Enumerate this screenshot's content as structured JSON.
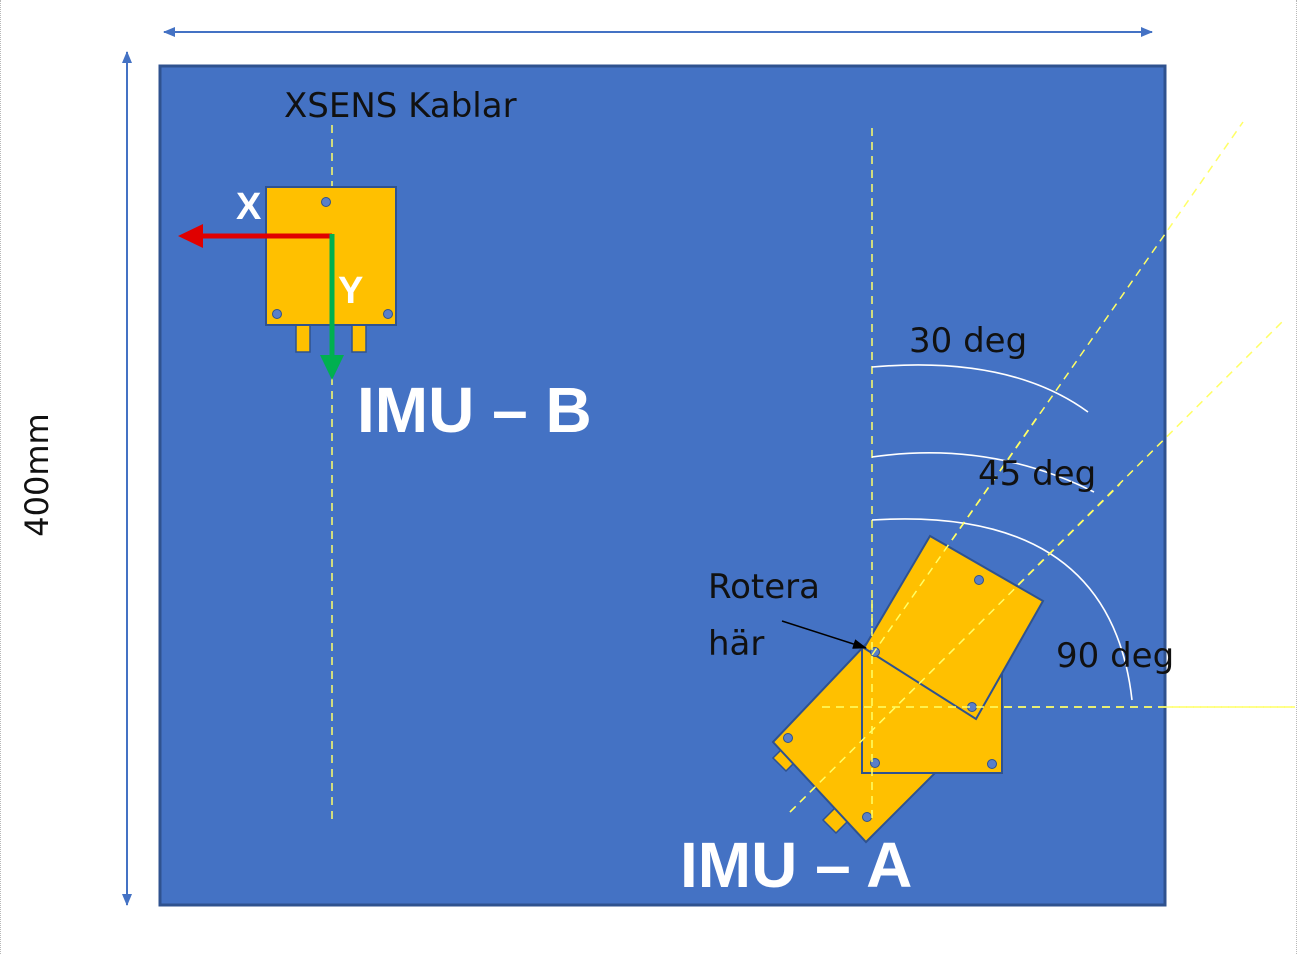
{
  "dimension_label": "400mm",
  "cable_label": "XSENS Kablar",
  "imu_b": {
    "title": "IMU – B",
    "axis_x": "X",
    "axis_y": "Y"
  },
  "imu_a": {
    "title": "IMU – A",
    "pivot_line1": "Rotera",
    "pivot_line2": "här",
    "angles": [
      "30 deg",
      "45 deg",
      "90 deg"
    ]
  },
  "colors": {
    "board": "#4472C4",
    "board_border": "#2F528F",
    "imu": "#FFC000",
    "imu_border": "#2F528F",
    "guide": "#FFFF66",
    "axis_x": "#E00000",
    "axis_y": "#00B050",
    "dimension": "#4472C4"
  }
}
